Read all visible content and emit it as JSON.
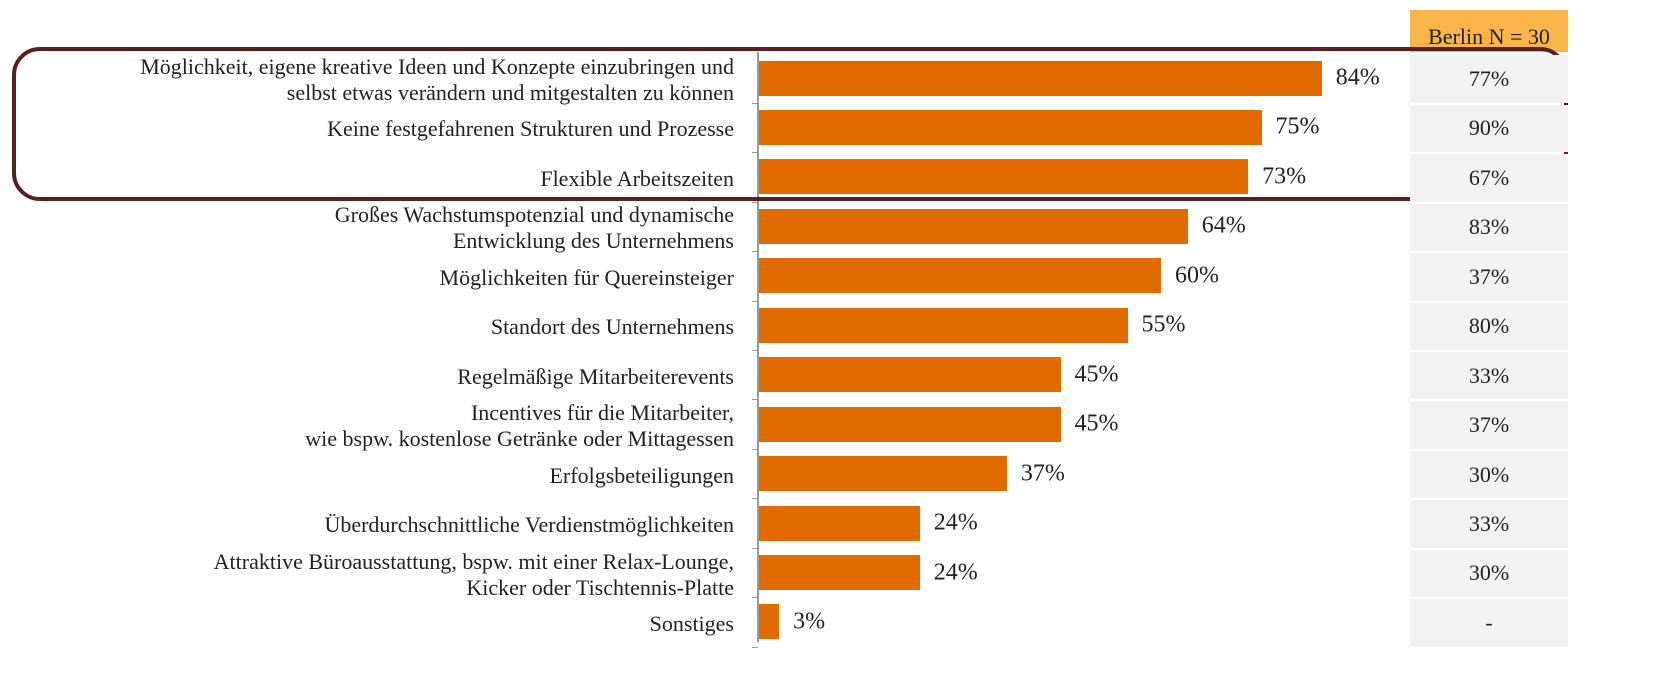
{
  "chart_data": {
    "type": "bar",
    "orientation": "horizontal",
    "categories": [
      "Möglichkeit, eigene kreative Ideen und Konzepte einzubringen und\nselbst etwas verändern und mitgestalten zu können",
      "Keine festgefahrenen Strukturen und Prozesse",
      "Flexible Arbeitszeiten",
      "Großes Wachstumspotenzial und dynamische\nEntwicklung des Unternehmens",
      "Möglichkeiten für Quereinsteiger",
      "Standort des Unternehmens",
      "Regelmäßige Mitarbeiterevents",
      "Incentives für die Mitarbeiter,\nwie bspw. kostenlose Getränke oder Mittagessen",
      "Erfolgsbeteiligungen",
      "Überdurchschnittliche Verdienstmöglichkeiten",
      "Attraktive Büroausstattung, bspw. mit einer Relax-Lounge,\nKicker oder Tischtennis-Platte",
      "Sonstiges"
    ],
    "values": [
      84,
      75,
      73,
      64,
      60,
      55,
      45,
      45,
      37,
      24,
      24,
      3
    ],
    "value_labels": [
      "84%",
      "75%",
      "73%",
      "64%",
      "60%",
      "55%",
      "45%",
      "45%",
      "37%",
      "24%",
      "24%",
      "3%"
    ],
    "color": "#e06b00",
    "xlim": [
      0,
      100
    ]
  },
  "table": {
    "header": "Berlin N = 30",
    "cells": [
      "77%",
      "90%",
      "67%",
      "83%",
      "37%",
      "80%",
      "33%",
      "37%",
      "30%",
      "33%",
      "30%",
      "-"
    ]
  }
}
